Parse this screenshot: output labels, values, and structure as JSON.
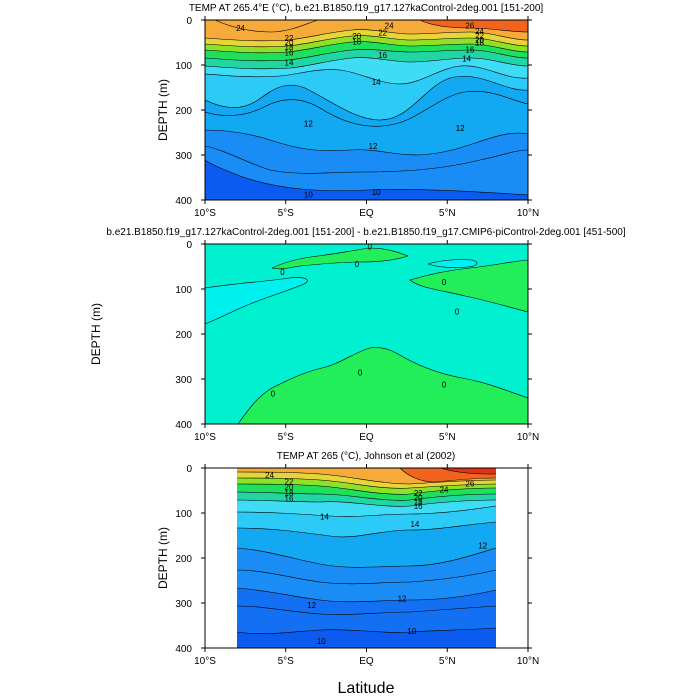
{
  "figure": {
    "xlabel": "Latitude"
  },
  "chart_data": [
    {
      "type": "contour",
      "title": "TEMP AT 265.4°E (°C), b.e21.B1850.f19_g17.127kaControl-2deg.001 [151-200]",
      "ylabel": "DEPTH (m)",
      "xlim": [
        -10,
        10
      ],
      "ylim": [
        400,
        0
      ],
      "x_tick_labels": [
        "10°S",
        "5°S",
        "EQ",
        "5°N",
        "10°N"
      ],
      "y_tick_labels": [
        "0",
        "100",
        "200",
        "300",
        "400"
      ],
      "x_ticks": [
        -10,
        -5,
        0,
        5,
        10
      ],
      "y_ticks": [
        0,
        100,
        200,
        300,
        400
      ],
      "contour_levels": [
        10,
        11,
        12,
        13,
        14,
        15,
        16,
        18,
        20,
        22,
        24,
        26
      ],
      "contour_labels": [
        {
          "text": "24",
          "x": -7.8,
          "y": 18
        },
        {
          "text": "22",
          "x": -4.8,
          "y": 40
        },
        {
          "text": "20",
          "x": -4.8,
          "y": 50
        },
        {
          "text": "18",
          "x": -4.8,
          "y": 60
        },
        {
          "text": "16",
          "x": -4.8,
          "y": 72
        },
        {
          "text": "14",
          "x": -4.8,
          "y": 94
        },
        {
          "text": "24",
          "x": 1.4,
          "y": 12
        },
        {
          "text": "22",
          "x": 1.0,
          "y": 28
        },
        {
          "text": "20",
          "x": -0.6,
          "y": 36
        },
        {
          "text": "18",
          "x": -0.6,
          "y": 48
        },
        {
          "text": "16",
          "x": 1.0,
          "y": 78
        },
        {
          "text": "14",
          "x": 0.6,
          "y": 138
        },
        {
          "text": "26",
          "x": 6.4,
          "y": 12
        },
        {
          "text": "24",
          "x": 7.0,
          "y": 24
        },
        {
          "text": "22",
          "x": 7.0,
          "y": 34
        },
        {
          "text": "20",
          "x": 7.0,
          "y": 44
        },
        {
          "text": "18",
          "x": 7.0,
          "y": 50
        },
        {
          "text": "16",
          "x": 6.4,
          "y": 66
        },
        {
          "text": "14",
          "x": 6.2,
          "y": 86
        },
        {
          "text": "12",
          "x": -3.6,
          "y": 230
        },
        {
          "text": "12",
          "x": 0.4,
          "y": 280
        },
        {
          "text": "12",
          "x": 5.8,
          "y": 240
        },
        {
          "text": "10",
          "x": -3.6,
          "y": 388
        },
        {
          "text": "10",
          "x": 0.6,
          "y": 382
        }
      ]
    },
    {
      "type": "contour",
      "title": "b.e21.B1850.f19_g17.127kaControl-2deg.001 [151-200] - b.e21.B1850.f19_g17.CMIP6-piControl-2deg.001 [451-500]",
      "ylabel": "DEPTH (m)",
      "xlim": [
        -10,
        10
      ],
      "ylim": [
        400,
        0
      ],
      "x_tick_labels": [
        "10°S",
        "5°S",
        "EQ",
        "5°N",
        "10°N"
      ],
      "y_tick_labels": [
        "0",
        "100",
        "200",
        "300",
        "400"
      ],
      "x_ticks": [
        -10,
        -5,
        0,
        5,
        10
      ],
      "y_ticks": [
        0,
        100,
        200,
        300,
        400
      ],
      "contour_levels": [
        -0.5,
        0,
        0.5
      ],
      "contour_labels": [
        {
          "text": "0",
          "x": 0.2,
          "y": 6
        },
        {
          "text": "0",
          "x": -5.2,
          "y": 62
        },
        {
          "text": "0",
          "x": -0.6,
          "y": 44
        },
        {
          "text": "0",
          "x": 4.8,
          "y": 84
        },
        {
          "text": "0",
          "x": 5.6,
          "y": 150
        },
        {
          "text": "0",
          "x": -5.8,
          "y": 332
        },
        {
          "text": "0",
          "x": -0.4,
          "y": 286
        },
        {
          "text": "0",
          "x": 4.8,
          "y": 312
        }
      ]
    },
    {
      "type": "contour",
      "title": "TEMP AT 265 (°C), Johnson et al (2002)",
      "ylabel": "DEPTH (m)",
      "xlim": [
        -10,
        10
      ],
      "ylim": [
        400,
        0
      ],
      "x_tick_labels": [
        "10°S",
        "5°S",
        "EQ",
        "5°N",
        "10°N"
      ],
      "y_tick_labels": [
        "0",
        "100",
        "200",
        "300",
        "400"
      ],
      "x_ticks": [
        -10,
        -5,
        0,
        5,
        10
      ],
      "y_ticks": [
        0,
        100,
        200,
        300,
        400
      ],
      "data_extent_x": [
        -8,
        8
      ],
      "contour_levels": [
        10,
        11,
        12,
        13,
        14,
        15,
        16,
        18,
        20,
        22,
        24,
        26
      ],
      "contour_labels": [
        {
          "text": "24",
          "x": -6.0,
          "y": 16
        },
        {
          "text": "22",
          "x": -4.8,
          "y": 30
        },
        {
          "text": "20",
          "x": -4.8,
          "y": 42
        },
        {
          "text": "18",
          "x": -4.8,
          "y": 56
        },
        {
          "text": "16",
          "x": -4.8,
          "y": 68
        },
        {
          "text": "14",
          "x": -2.6,
          "y": 108
        },
        {
          "text": "24",
          "x": 4.8,
          "y": 48
        },
        {
          "text": "22",
          "x": 3.2,
          "y": 56
        },
        {
          "text": "20",
          "x": 3.2,
          "y": 66
        },
        {
          "text": "18",
          "x": 3.2,
          "y": 76
        },
        {
          "text": "16",
          "x": 3.2,
          "y": 84
        },
        {
          "text": "26",
          "x": 6.4,
          "y": 34
        },
        {
          "text": "14",
          "x": 3.0,
          "y": 124
        },
        {
          "text": "12",
          "x": 7.2,
          "y": 172
        },
        {
          "text": "12",
          "x": -3.4,
          "y": 304
        },
        {
          "text": "12",
          "x": 2.2,
          "y": 290
        },
        {
          "text": "10",
          "x": -2.8,
          "y": 384
        },
        {
          "text": "10",
          "x": 2.8,
          "y": 362
        }
      ]
    }
  ]
}
